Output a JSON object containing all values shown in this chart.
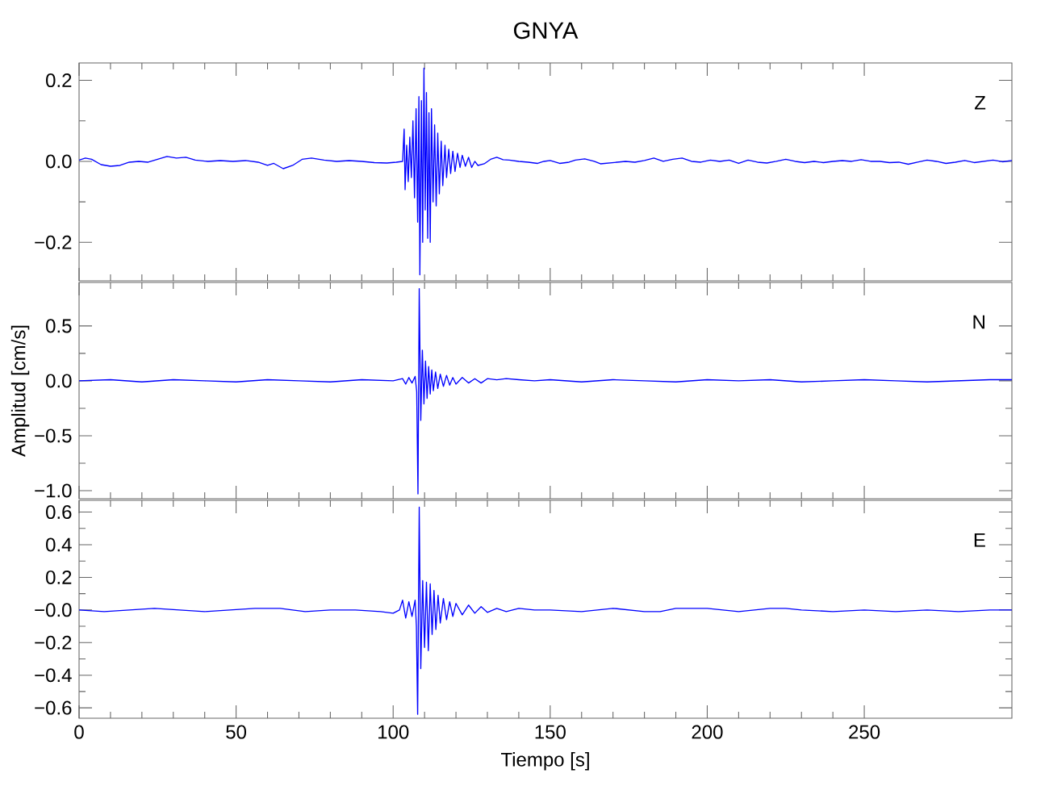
{
  "chart_data": [
    {
      "type": "line",
      "title": "GNYA",
      "color": "#0000ff",
      "annotations": [
        "Z"
      ],
      "tick_labels": "y",
      "xlim": [
        0,
        297
      ],
      "xticks": [
        0,
        50,
        100,
        150,
        200,
        250
      ],
      "ylim": [
        -0.295,
        0.243
      ],
      "yticks": [
        {
          "value": -0.2,
          "label": "−0.2"
        },
        {
          "value": 0,
          "label": "0.0"
        },
        {
          "value": 0.2,
          "label": "0.2"
        }
      ],
      "x": [
        0,
        2,
        4,
        7,
        10,
        13,
        16,
        19,
        22,
        25,
        28,
        31,
        34,
        37,
        41,
        45,
        49,
        53,
        57,
        60,
        62,
        65,
        68,
        71,
        74,
        78,
        82,
        86,
        90,
        94,
        98,
        101,
        103,
        103.5,
        103.8,
        104.3,
        104.8,
        105.3,
        105.8,
        106.3,
        106.8,
        107.3,
        107.8,
        108.2,
        108.5,
        109,
        109.4,
        109.8,
        110.2,
        110.6,
        111,
        111.4,
        111.8,
        112.2,
        112.7,
        113.2,
        113.7,
        114.2,
        114.7,
        115.3,
        115.8,
        116.5,
        117,
        117.7,
        118.3,
        119,
        119.7,
        120.5,
        121.3,
        122,
        123,
        124,
        125,
        126,
        127,
        129,
        131,
        133,
        135,
        137,
        140,
        143,
        146,
        148,
        150,
        153,
        156,
        158,
        161,
        164,
        166,
        170,
        174,
        177,
        180,
        183,
        186,
        189,
        192,
        195,
        198,
        201,
        204,
        207,
        210,
        213,
        216,
        219,
        222,
        225,
        228,
        231,
        234,
        237,
        240,
        243,
        246,
        249,
        252,
        255,
        258,
        261,
        264,
        267,
        270,
        273,
        276,
        279,
        282,
        285,
        288,
        291,
        294,
        297
      ],
      "values": [
        0.003,
        0.008,
        0.005,
        -0.008,
        -0.012,
        -0.01,
        -0.002,
        0.0,
        -0.002,
        0.005,
        0.012,
        0.008,
        0.01,
        0.003,
        0.0,
        0.002,
        0.0,
        0.002,
        -0.002,
        -0.01,
        -0.005,
        -0.018,
        -0.01,
        0.005,
        0.008,
        0.003,
        0.0,
        0.002,
        0.0,
        -0.003,
        -0.004,
        -0.002,
        0.0,
        0.08,
        -0.07,
        0.04,
        -0.05,
        0.06,
        -0.04,
        0.1,
        -0.09,
        0.13,
        -0.15,
        0.16,
        -0.28,
        0.15,
        -0.2,
        0.23,
        -0.12,
        0.17,
        -0.19,
        0.12,
        -0.2,
        0.13,
        -0.1,
        0.09,
        -0.11,
        0.07,
        -0.08,
        0.05,
        -0.06,
        0.04,
        -0.04,
        0.03,
        -0.03,
        0.025,
        -0.025,
        0.02,
        -0.015,
        0.015,
        -0.012,
        0.01,
        -0.015,
        0.0,
        -0.01,
        -0.006,
        0.005,
        0.01,
        0.004,
        0.003,
        0.0,
        -0.002,
        -0.005,
        0.0,
        0.002,
        -0.005,
        -0.002,
        0.003,
        0.006,
        0.0,
        -0.006,
        -0.003,
        0.0,
        -0.002,
        0.002,
        0.008,
        0.0,
        0.005,
        0.008,
        0.0,
        -0.002,
        0.003,
        0.0,
        0.003,
        -0.005,
        0.003,
        -0.002,
        -0.004,
        0.0,
        0.005,
        0.0,
        -0.003,
        0.0,
        -0.003,
        0.0,
        0.002,
        0.0,
        0.004,
        0.0,
        0.0,
        -0.003,
        -0.002,
        -0.007,
        -0.002,
        0.003,
        0.0,
        -0.005,
        -0.002,
        0.002,
        -0.003,
        0.0,
        0.003,
        -0.001,
        0.002
      ]
    },
    {
      "type": "line",
      "ylabel": "Amplitud [cm/s]",
      "color": "#0000ff",
      "annotations": [
        "N"
      ],
      "tick_labels": "y",
      "xlim": [
        0,
        297
      ],
      "xticks": [
        0,
        50,
        100,
        150,
        200,
        250
      ],
      "ylim": [
        -1.074,
        0.896
      ],
      "yticks": [
        {
          "value": -1,
          "label": "−1.0"
        },
        {
          "value": -0.5,
          "label": "−0.5"
        },
        {
          "value": 0,
          "label": "0.0"
        },
        {
          "value": 0.5,
          "label": "0.5"
        }
      ],
      "x": [
        0,
        10,
        20,
        30,
        40,
        50,
        60,
        70,
        80,
        90,
        100,
        103,
        104,
        105,
        106,
        107,
        107.5,
        107.9,
        108.3,
        108.8,
        109.3,
        109.8,
        110.3,
        110.8,
        111.3,
        111.8,
        112.3,
        112.8,
        113.5,
        114.2,
        115,
        116,
        117,
        118,
        119,
        120,
        122,
        124,
        126,
        128,
        130,
        133,
        136,
        140,
        145,
        150,
        160,
        170,
        180,
        190,
        200,
        210,
        220,
        230,
        240,
        250,
        260,
        270,
        280,
        290,
        297
      ],
      "values": [
        0.0,
        0.01,
        -0.01,
        0.01,
        0.0,
        -0.01,
        0.01,
        0.0,
        -0.01,
        0.01,
        0.0,
        0.02,
        -0.03,
        0.03,
        -0.02,
        0.04,
        -0.1,
        -1.03,
        0.84,
        -0.36,
        0.28,
        -0.21,
        0.18,
        -0.16,
        0.13,
        -0.12,
        0.1,
        -0.09,
        0.08,
        -0.07,
        0.06,
        -0.05,
        0.05,
        -0.04,
        0.03,
        -0.03,
        0.03,
        -0.02,
        0.02,
        -0.02,
        0.02,
        0.01,
        0.02,
        0.01,
        0.0,
        0.01,
        -0.01,
        0.01,
        0.0,
        -0.01,
        0.01,
        0.0,
        0.01,
        -0.01,
        0.0,
        0.01,
        0.0,
        -0.01,
        0.0,
        0.01,
        0.01
      ]
    },
    {
      "type": "line",
      "xlabel": "Tiempo [s]",
      "color": "#0000ff",
      "annotations": [
        "E"
      ],
      "xlim": [
        0,
        297
      ],
      "xticks": [
        0,
        50,
        100,
        150,
        200,
        250
      ],
      "ylim": [
        -0.664,
        0.672
      ],
      "yticks": [
        {
          "value": -0.6,
          "label": "−0.6"
        },
        {
          "value": -0.4,
          "label": "−0.4"
        },
        {
          "value": -0.2,
          "label": "−0.2"
        },
        {
          "value": 0,
          "label": "−0.0"
        },
        {
          "value": 0.2,
          "label": "0.2"
        },
        {
          "value": 0.4,
          "label": "0.4"
        },
        {
          "value": 0.6,
          "label": "0.6"
        }
      ],
      "x": [
        0,
        8,
        16,
        24,
        32,
        40,
        48,
        56,
        64,
        72,
        80,
        88,
        96,
        100,
        102,
        103,
        104,
        105,
        106,
        107,
        107.4,
        107.8,
        108.3,
        108.8,
        109.4,
        110,
        110.6,
        111.2,
        111.8,
        112.4,
        113,
        113.6,
        114.3,
        115,
        116,
        117,
        118,
        119,
        120,
        122,
        124,
        126,
        128,
        130,
        133,
        136,
        140,
        145,
        150,
        160,
        170,
        180,
        185,
        190,
        200,
        210,
        215,
        220,
        225,
        230,
        240,
        250,
        260,
        270,
        280,
        290,
        297
      ],
      "values": [
        0.0,
        -0.01,
        0.0,
        0.01,
        0.0,
        -0.01,
        0.0,
        0.01,
        0.01,
        -0.01,
        0.0,
        0.0,
        -0.01,
        -0.02,
        0.0,
        0.06,
        -0.05,
        0.05,
        -0.04,
        0.06,
        -0.1,
        -0.64,
        0.63,
        -0.36,
        0.18,
        -0.23,
        0.17,
        -0.25,
        0.16,
        -0.15,
        0.12,
        -0.12,
        0.09,
        -0.08,
        0.07,
        -0.06,
        0.05,
        -0.04,
        0.04,
        -0.03,
        0.03,
        -0.02,
        0.02,
        -0.015,
        0.01,
        -0.01,
        0.01,
        0.0,
        0.0,
        -0.01,
        0.01,
        -0.01,
        -0.01,
        0.01,
        0.01,
        -0.01,
        0.0,
        0.01,
        0.01,
        0.0,
        -0.01,
        0.0,
        -0.01,
        0.0,
        -0.01,
        0.0,
        0.0
      ]
    }
  ]
}
